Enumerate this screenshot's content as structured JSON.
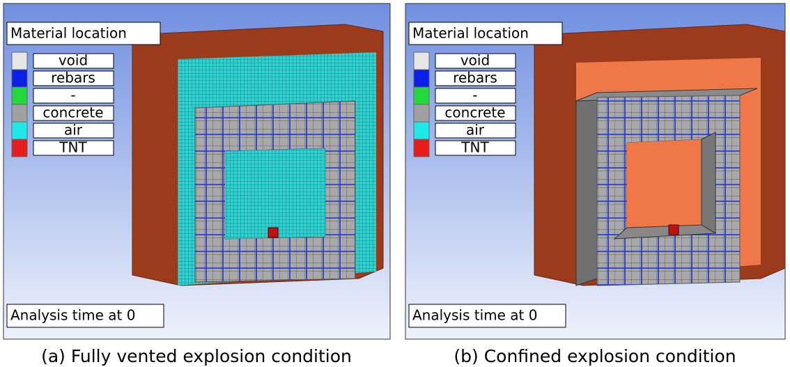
{
  "panels": [
    {
      "legend_title": "Material location",
      "legend": [
        "void",
        "rebars",
        "-",
        "concrete",
        "air",
        "TNT"
      ],
      "time_label": "Analysis time at 0",
      "caption": "(a) Fully vented explosion condition"
    },
    {
      "legend_title": "Material location",
      "legend": [
        "void",
        "rebars",
        "-",
        "concrete",
        "air",
        "TNT"
      ],
      "time_label": "Analysis time at 0",
      "caption": "(b) Confined explosion condition"
    }
  ]
}
